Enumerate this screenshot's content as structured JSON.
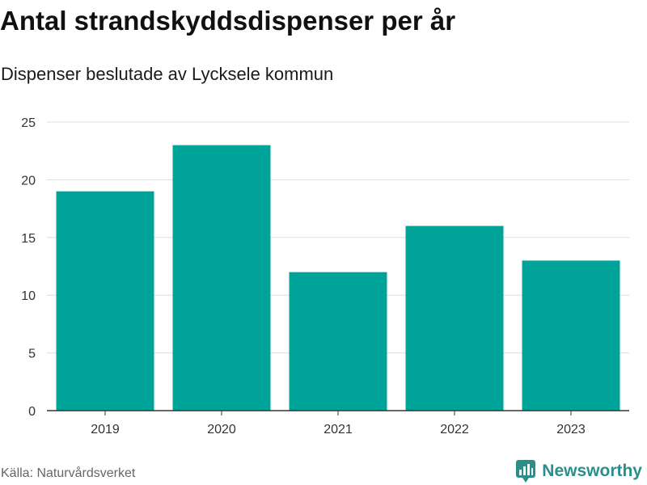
{
  "header": {
    "title": "Antal strandskyddsdispenser per år",
    "subtitle": "Dispenser beslutade av Lycksele kommun"
  },
  "footer": {
    "source": "Källa: Naturvårdsverket",
    "brand": "Newsworthy",
    "brand_icon": "bar-chart-bubble-icon"
  },
  "colors": {
    "bar": "#00a398",
    "grid": "#dddddd",
    "axis": "#333333",
    "brand": "#2a8f8a"
  },
  "chart_data": {
    "type": "bar",
    "title": "Antal strandskyddsdispenser per år",
    "subtitle": "Dispenser beslutade av Lycksele kommun",
    "categories": [
      "2019",
      "2020",
      "2021",
      "2022",
      "2023"
    ],
    "values": [
      19,
      23,
      12,
      16,
      13
    ],
    "xlabel": "",
    "ylabel": "",
    "ylim": [
      0,
      25
    ],
    "yticks": [
      0,
      5,
      10,
      15,
      20,
      25
    ],
    "grid": true,
    "legend": "none"
  }
}
